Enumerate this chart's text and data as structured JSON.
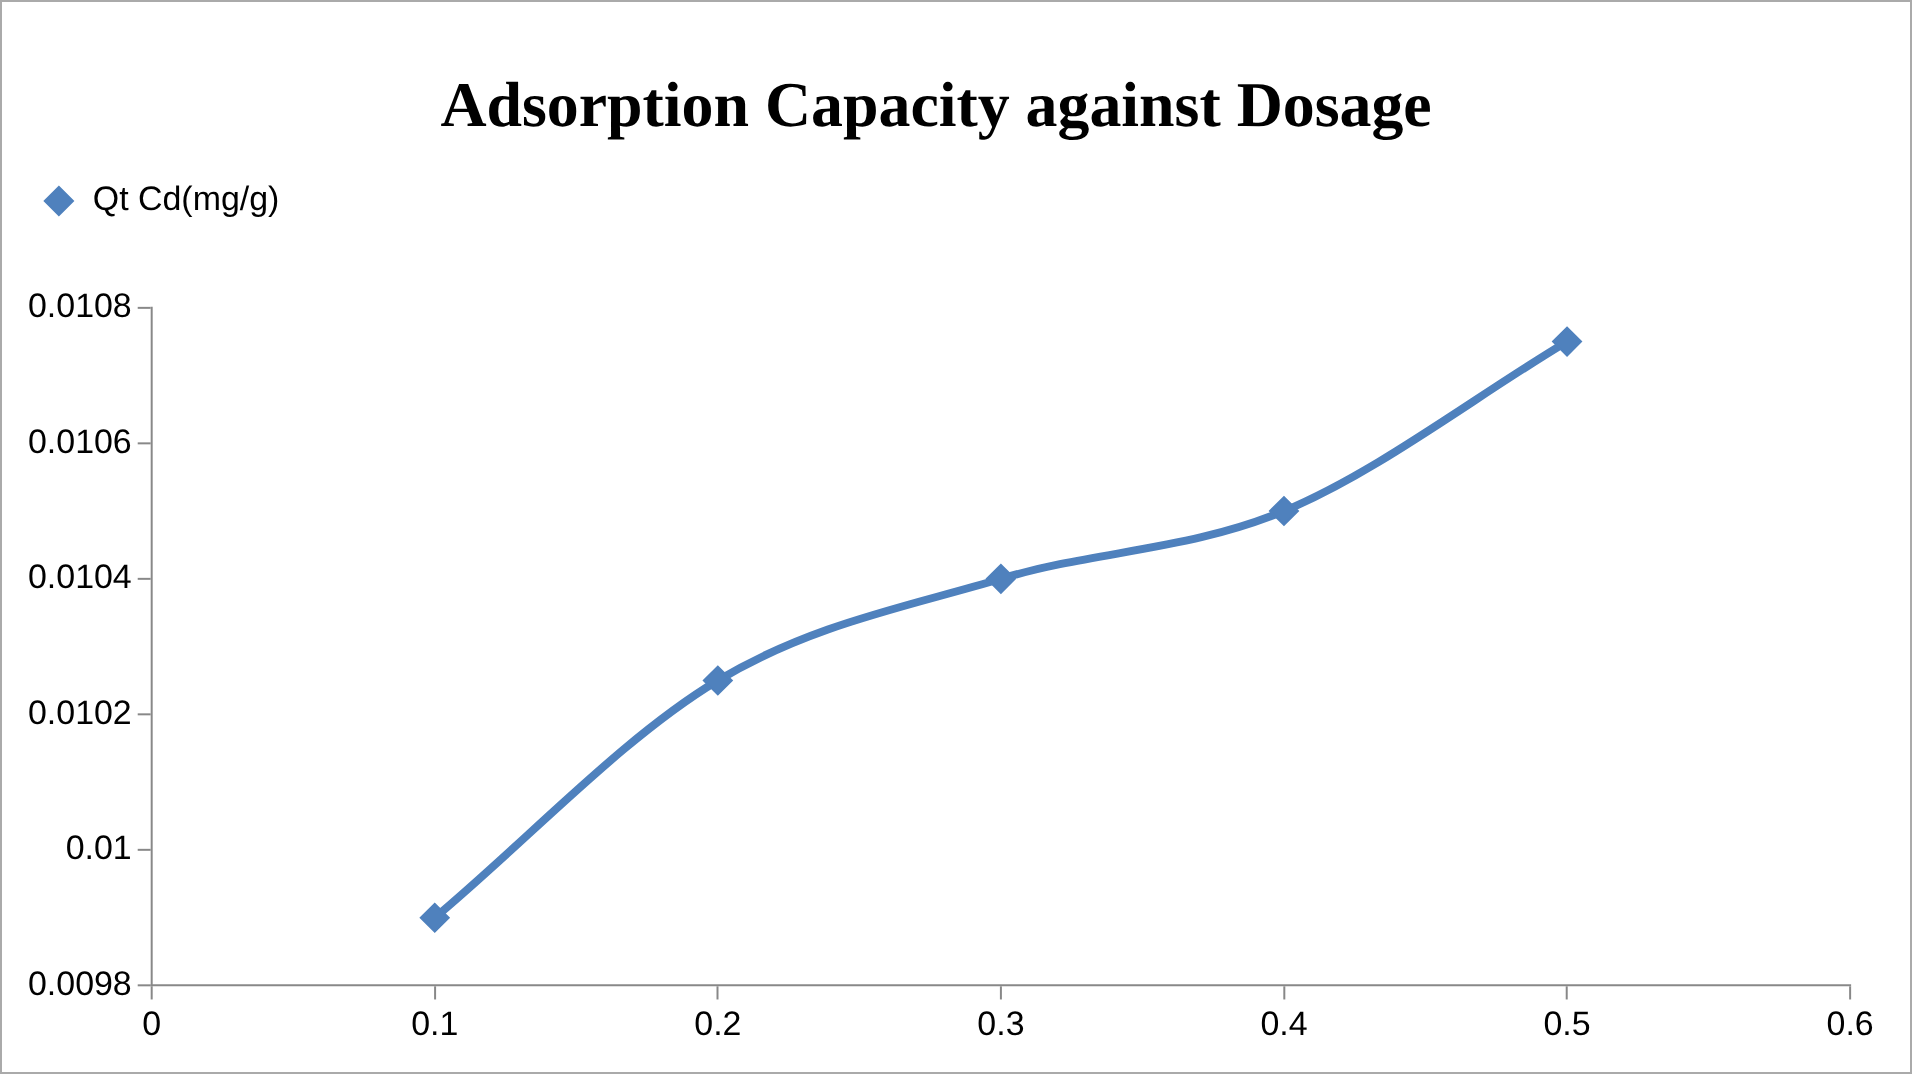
{
  "chart_data": {
    "type": "line",
    "title": "Adsorption Capacity against Dosage",
    "x": [
      0.1,
      0.2,
      0.3,
      0.4,
      0.5
    ],
    "series": [
      {
        "name": "Qt Cd(mg/g)",
        "color": "#4f81bd",
        "values": [
          0.0099,
          0.01025,
          0.0104,
          0.0105,
          0.01075
        ]
      }
    ],
    "xlim": [
      0,
      0.6
    ],
    "xticks": [
      0,
      0.1,
      0.2,
      0.3,
      0.4,
      0.5,
      0.6
    ],
    "ylim": [
      0.0098,
      0.0108
    ],
    "yticks": [
      0.0098,
      0.01,
      0.0102,
      0.0104,
      0.0106,
      0.0108
    ],
    "grid": false,
    "legend": "top left",
    "marker": "diamond",
    "line_style": "solid"
  }
}
